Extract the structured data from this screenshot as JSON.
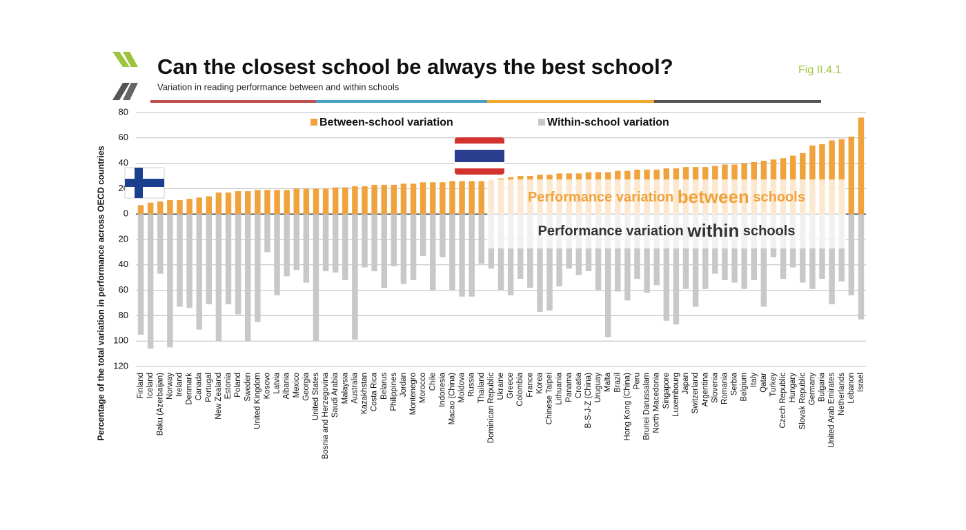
{
  "chart_data": {
    "type": "bar",
    "title": "Can the closest school be always the best school?",
    "subtitle": "Variation in reading performance between and within schools",
    "figure_label": "Fig II.4.1",
    "y_label": "Percentage of the total variation in performance across OECD countries",
    "annotations": [
      [
        "Performance variation ",
        "between",
        " schools"
      ],
      [
        "Performance variation ",
        "within",
        " schools"
      ]
    ],
    "legend": "top",
    "grid": true,
    "categories": [
      "Finland",
      "Iceland",
      "Baku (Azerbaijan)",
      "Norway",
      "Ireland",
      "Denmark",
      "Canada",
      "Portugal",
      "New Zealand",
      "Estonia",
      "Poland",
      "Sweden",
      "United Kingdom",
      "Kosovo",
      "Latvia",
      "Albania",
      "Mexico",
      "Georgia",
      "United States",
      "Bosnia and Herzegovina",
      "Saudi Arabia",
      "Malaysia",
      "Australia",
      "Kazakhstan",
      "Costa Rica",
      "Belarus",
      "Philippines",
      "Jordan",
      "Montenegro",
      "Morocco",
      "Chile",
      "Indonesia",
      "Macao (China)",
      "Moldova",
      "Russia",
      "Thailand",
      "Dominican Republic",
      "Ukraine",
      "Greece",
      "Colombia",
      "France",
      "Korea",
      "Chinese Taipei",
      "Lithuania",
      "Panama",
      "Croatia",
      "B-S-J-Z (China)",
      "Uruguay",
      "Malta",
      "Brazil",
      "Hong Kong (China)",
      "Peru",
      "Brunei Darussalam",
      "North Macedonia",
      "Singapore",
      "Luxembourg",
      "Japan",
      "Switzerland",
      "Argentina",
      "Slovenia",
      "Romania",
      "Serbia",
      "Belgium",
      "Italy",
      "Qatar",
      "Turkey",
      "Czech Republic",
      "Hungary",
      "Slovak Republic",
      "Germany",
      "Bulgaria",
      "United Arab Emirates",
      "Netherlands",
      "Lebanon",
      "Israel"
    ],
    "series": [
      {
        "name": "Between-school variation",
        "color": "#f0a23c",
        "values": [
          7,
          9,
          10,
          11,
          11,
          12,
          13,
          14,
          17,
          17,
          18,
          18,
          19,
          19,
          19,
          19,
          20,
          20,
          20,
          20,
          21,
          21,
          22,
          22,
          23,
          23,
          23,
          24,
          24,
          25,
          25,
          25,
          26,
          26,
          26,
          26,
          27,
          28,
          29,
          30,
          30,
          31,
          31,
          32,
          32,
          32,
          33,
          33,
          33,
          34,
          34,
          35,
          35,
          35,
          36,
          36,
          37,
          37,
          37,
          38,
          39,
          39,
          40,
          41,
          42,
          43,
          44,
          46,
          48,
          54,
          55,
          58,
          59,
          61,
          76
        ]
      },
      {
        "name": "Within-school variation",
        "color": "#c8c8c8",
        "values": [
          -95,
          -106,
          -47,
          -105,
          -73,
          -74,
          -91,
          -71,
          -100,
          -71,
          -79,
          -100,
          -85,
          -30,
          -64,
          -49,
          -44,
          -54,
          -100,
          -45,
          -46,
          -52,
          -99,
          -42,
          -45,
          -58,
          -41,
          -55,
          -52,
          -33,
          -60,
          -34,
          -60,
          -65,
          -65,
          -39,
          -43,
          -60,
          -64,
          -51,
          -58,
          -77,
          -76,
          -57,
          -43,
          -48,
          -45,
          -60,
          -97,
          -61,
          -68,
          -51,
          -62,
          -56,
          -84,
          -87,
          -59,
          -73,
          -59,
          -47,
          -52,
          -54,
          -59,
          -52,
          -73,
          -34,
          -51,
          -42,
          -54,
          -59,
          -51,
          -71,
          -53,
          -64,
          -83
        ]
      }
    ],
    "ylim": [
      -120,
      80
    ],
    "yticks": [
      80,
      60,
      40,
      20,
      0,
      {
        "value": -20,
        "label": "20"
      },
      {
        "value": -40,
        "label": "40"
      },
      {
        "value": -60,
        "label": "60"
      },
      {
        "value": -80,
        "label": "80"
      },
      {
        "value": -100,
        "label": "100"
      },
      {
        "value": -120,
        "label": "120"
      }
    ]
  }
}
